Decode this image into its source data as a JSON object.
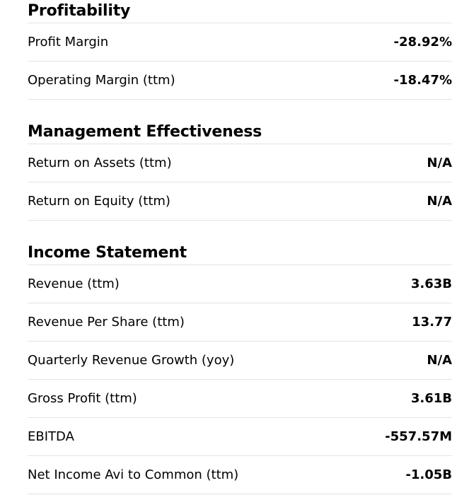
{
  "sections": [
    {
      "title": "Profitability",
      "rows": [
        {
          "label": "Profit Margin",
          "value": "-28.92%"
        },
        {
          "label": "Operating Margin (ttm)",
          "value": "-18.47%"
        }
      ]
    },
    {
      "title": "Management Effectiveness",
      "rows": [
        {
          "label": "Return on Assets (ttm)",
          "value": "N/A"
        },
        {
          "label": "Return on Equity (ttm)",
          "value": "N/A"
        }
      ]
    },
    {
      "title": "Income Statement",
      "rows": [
        {
          "label": "Revenue (ttm)",
          "value": "3.63B"
        },
        {
          "label": "Revenue Per Share (ttm)",
          "value": "13.77"
        },
        {
          "label": "Quarterly Revenue Growth (yoy)",
          "value": "N/A"
        },
        {
          "label": "Gross Profit (ttm)",
          "value": "3.61B"
        },
        {
          "label": "EBITDA",
          "value": "-557.57M"
        },
        {
          "label": "Net Income Avi to Common (ttm)",
          "value": "-1.05B"
        }
      ]
    }
  ]
}
